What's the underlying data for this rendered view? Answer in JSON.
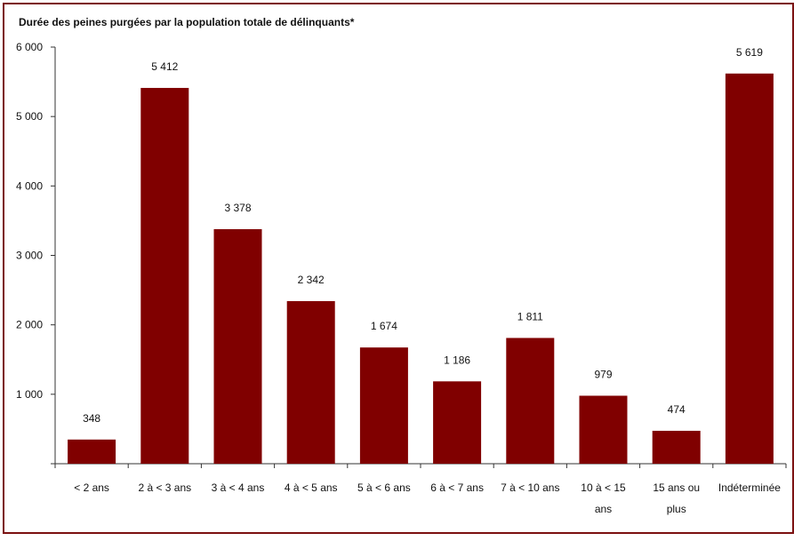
{
  "chart_data": {
    "type": "bar",
    "title": "Durée des peines purgées par la population totale de délinquants*",
    "categories": [
      [
        "< 2 ans"
      ],
      [
        "2 à < 3 ans"
      ],
      [
        "3 à < 4 ans"
      ],
      [
        "4 à < 5 ans"
      ],
      [
        "5 à < 6 ans"
      ],
      [
        "6 à < 7 ans"
      ],
      [
        "7 à < 10 ans"
      ],
      [
        "10 à < 15",
        "ans"
      ],
      [
        "15 ans ou",
        "plus"
      ],
      [
        "Indéterminée"
      ]
    ],
    "values": [
      348,
      5412,
      3378,
      2342,
      1674,
      1186,
      1811,
      979,
      474,
      5619
    ],
    "value_labels": [
      "348",
      "5 412",
      "3 378",
      "2 342",
      "1 674",
      "1 186",
      "1 811",
      "979",
      "474",
      "5 619"
    ],
    "ylim": [
      0,
      6000
    ],
    "yticks": [
      0,
      1000,
      2000,
      3000,
      4000,
      5000,
      6000
    ],
    "ytick_labels": [
      "",
      "1 000",
      "2 000",
      "3 000",
      "4 000",
      "5 000",
      "6 000"
    ],
    "grid": false,
    "bar_color": "#800000",
    "frame_color": "#7b1010"
  }
}
